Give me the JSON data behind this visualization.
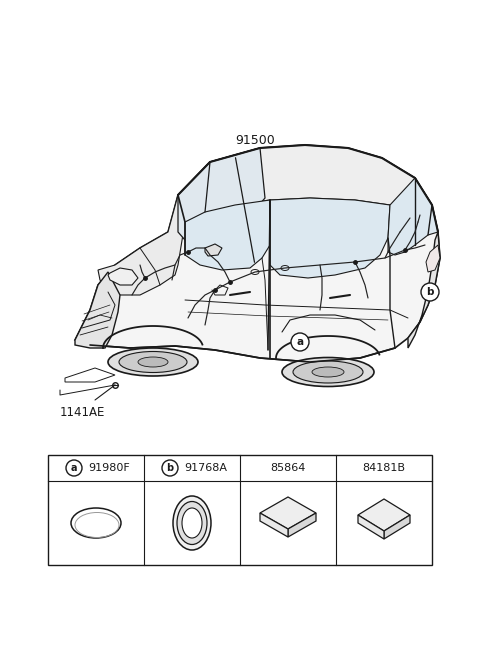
{
  "bg_color": "#ffffff",
  "line_color": "#1a1a1a",
  "fig_width": 4.8,
  "fig_height": 6.55,
  "dpi": 100,
  "part_label_91500": "91500",
  "part_label_1141AE": "1141AE",
  "table_parts": [
    {
      "code": "a",
      "part_num": "91980F"
    },
    {
      "code": "b",
      "part_num": "91768A"
    },
    {
      "code": "",
      "part_num": "85864"
    },
    {
      "code": "",
      "part_num": "84181B"
    }
  ],
  "car_color": "#1a1a1a",
  "wire_color": "#222222",
  "fill_light": "#f5f5f5",
  "fill_mid": "#e8e8e8",
  "fill_dark": "#d0d0d0"
}
